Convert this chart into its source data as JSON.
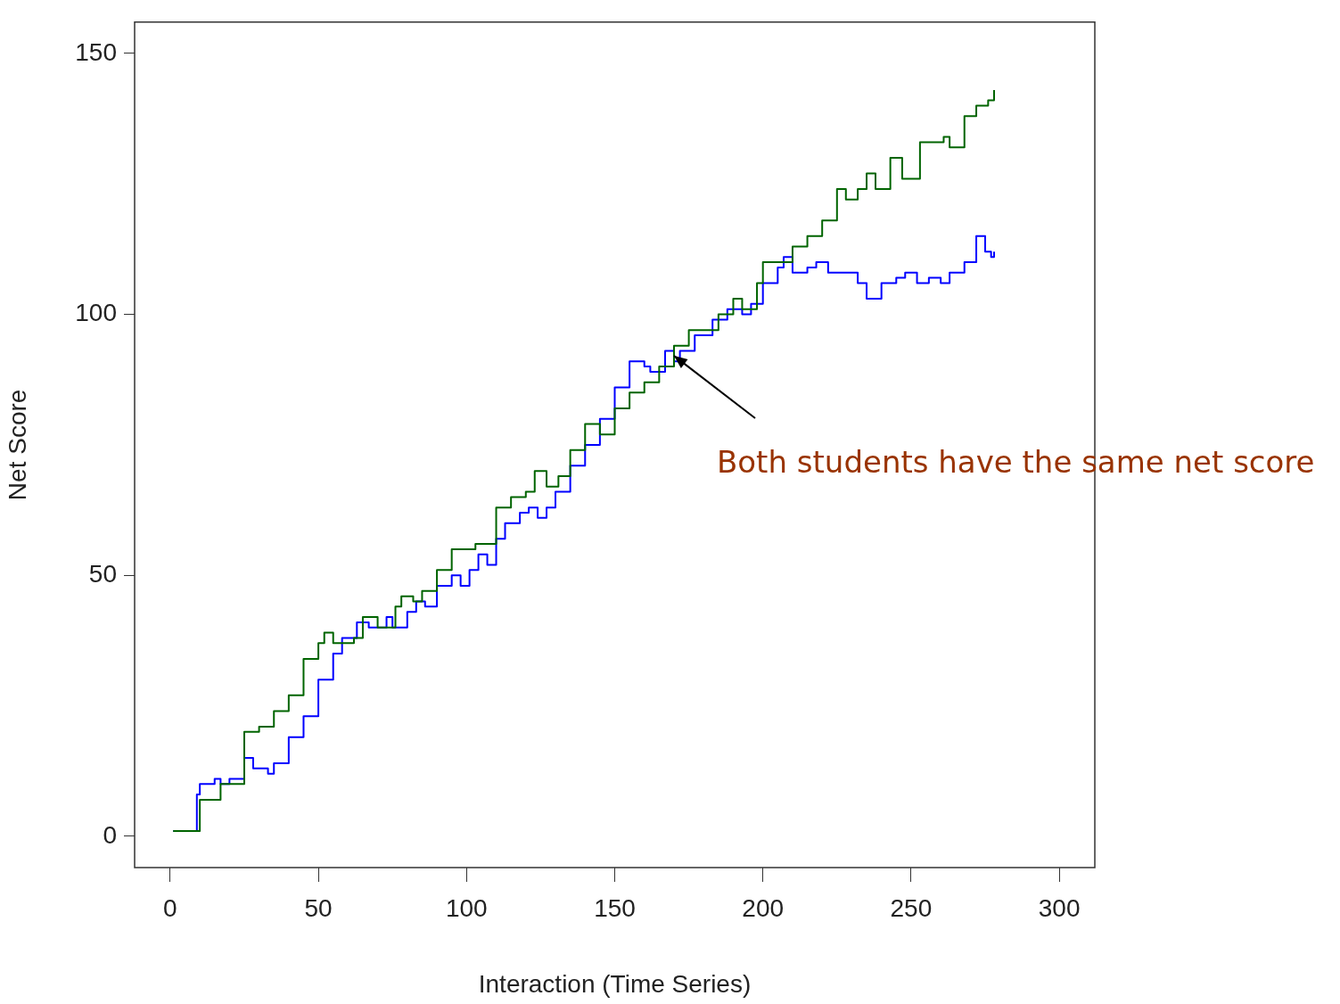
{
  "chart_data": {
    "type": "step",
    "xlabel": "Interaction (Time Series)",
    "ylabel": "Net Score",
    "xlim": [
      -12,
      312
    ],
    "ylim": [
      -6,
      156
    ],
    "xticks": [
      0,
      50,
      100,
      150,
      200,
      250,
      300
    ],
    "yticks": [
      0,
      50,
      100,
      150
    ],
    "grid": false,
    "legend": false,
    "annotations": [
      {
        "text": "Both students have the same net score",
        "x": 170,
        "y": 92
      }
    ],
    "series": [
      {
        "color": "#006400",
        "x": [
          1,
          10,
          12,
          17,
          25,
          30,
          35,
          40,
          45,
          50,
          52,
          55,
          62,
          65,
          70,
          76,
          78,
          82,
          85,
          90,
          95,
          100,
          103,
          110,
          115,
          120,
          123,
          127,
          131,
          135,
          140,
          145,
          150,
          155,
          160,
          165,
          170,
          175,
          180,
          185,
          190,
          193,
          198,
          200,
          205,
          210,
          215,
          220,
          225,
          228,
          232,
          235,
          238,
          243,
          247,
          253,
          258,
          261,
          263,
          268,
          272,
          276,
          278
        ],
        "values": [
          1,
          7,
          7,
          10,
          20,
          21,
          24,
          27,
          34,
          37,
          39,
          37,
          38,
          42,
          40,
          44,
          46,
          45,
          47,
          51,
          55,
          55,
          56,
          63,
          65,
          66,
          70,
          67,
          69,
          74,
          79,
          77,
          82,
          85,
          87,
          90,
          94,
          97,
          97,
          100,
          103,
          101,
          106,
          110,
          110,
          113,
          115,
          118,
          124,
          122,
          124,
          127,
          124,
          130,
          126,
          133,
          133,
          134,
          132,
          138,
          140,
          141,
          143
        ]
      },
      {
        "color": "#0000ff",
        "x": [
          1,
          9,
          10,
          15,
          17,
          20,
          25,
          28,
          33,
          35,
          40,
          45,
          50,
          55,
          58,
          60,
          63,
          67,
          73,
          75,
          80,
          83,
          86,
          90,
          95,
          98,
          101,
          104,
          107,
          110,
          113,
          118,
          121,
          124,
          127,
          130,
          135,
          140,
          145,
          150,
          155,
          160,
          162,
          167,
          170,
          172,
          177,
          183,
          188,
          193,
          196,
          200,
          205,
          207,
          210,
          215,
          218,
          222,
          227,
          232,
          235,
          240,
          245,
          248,
          252,
          256,
          260,
          263,
          268,
          272,
          275,
          277,
          278
        ],
        "values": [
          1,
          8,
          10,
          11,
          10,
          11,
          15,
          13,
          12,
          14,
          19,
          23,
          30,
          35,
          38,
          38,
          41,
          40,
          42,
          40,
          43,
          45,
          44,
          48,
          50,
          48,
          51,
          54,
          52,
          57,
          60,
          62,
          63,
          61,
          63,
          66,
          71,
          75,
          80,
          86,
          91,
          90,
          89,
          93,
          91,
          93,
          96,
          99,
          101,
          100,
          102,
          106,
          109,
          111,
          108,
          109,
          110,
          108,
          108,
          106,
          103,
          106,
          107,
          108,
          106,
          107,
          106,
          108,
          110,
          115,
          112,
          111,
          112
        ]
      }
    ]
  }
}
